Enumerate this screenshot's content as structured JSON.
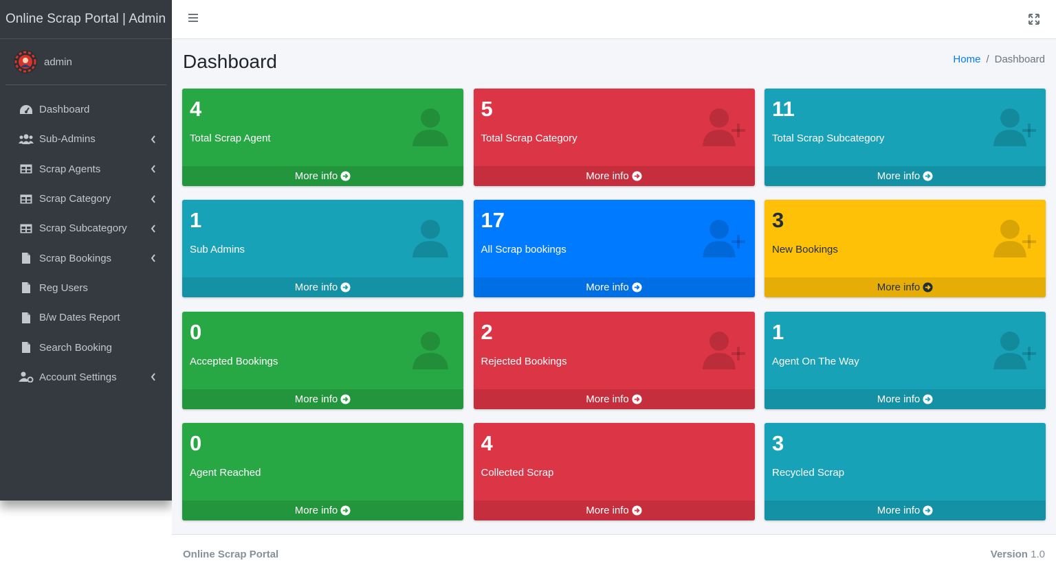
{
  "brand": {
    "title": "Online Scrap Portal | Admin"
  },
  "user": {
    "name": "admin"
  },
  "sidebar": {
    "items": [
      {
        "label": "Dashboard",
        "icon": "tachometer-icon",
        "has_caret": false
      },
      {
        "label": "Sub-Admins",
        "icon": "users-icon",
        "has_caret": true
      },
      {
        "label": "Scrap Agents",
        "icon": "table-icon",
        "has_caret": true
      },
      {
        "label": "Scrap Category",
        "icon": "table-icon",
        "has_caret": true
      },
      {
        "label": "Scrap Subcategory",
        "icon": "table-icon",
        "has_caret": true
      },
      {
        "label": "Scrap Bookings",
        "icon": "file-icon",
        "has_caret": true
      },
      {
        "label": "Reg Users",
        "icon": "file-icon",
        "has_caret": false
      },
      {
        "label": "B/w Dates Report",
        "icon": "file-icon",
        "has_caret": false
      },
      {
        "label": "Search Booking",
        "icon": "file-icon",
        "has_caret": false
      },
      {
        "label": "Account Settings",
        "icon": "user-cog-icon",
        "has_caret": true
      }
    ]
  },
  "header": {
    "page_title": "Dashboard",
    "breadcrumb": {
      "home": "Home",
      "current": "Dashboard"
    }
  },
  "boxes": [
    {
      "count": "4",
      "label": "Total Scrap Agent",
      "color": "success",
      "icon": "user-icon",
      "more": "More info"
    },
    {
      "count": "5",
      "label": "Total Scrap Category",
      "color": "danger",
      "icon": "user-plus-icon",
      "more": "More info"
    },
    {
      "count": "11",
      "label": "Total Scrap Subcategory",
      "color": "info",
      "icon": "user-plus-icon",
      "more": "More info"
    },
    {
      "count": "1",
      "label": "Sub Admins",
      "color": "info",
      "icon": "user-icon",
      "more": "More info"
    },
    {
      "count": "17",
      "label": "All Scrap bookings",
      "color": "primary",
      "icon": "user-plus-icon",
      "more": "More info"
    },
    {
      "count": "3",
      "label": "New Bookings",
      "color": "warning",
      "icon": "user-plus-icon",
      "more": "More info"
    },
    {
      "count": "0",
      "label": "Accepted Bookings",
      "color": "success",
      "icon": "user-icon",
      "more": "More info"
    },
    {
      "count": "2",
      "label": "Rejected Bookings",
      "color": "danger",
      "icon": "user-plus-icon",
      "more": "More info"
    },
    {
      "count": "1",
      "label": "Agent On The Way",
      "color": "info",
      "icon": "user-plus-icon",
      "more": "More info"
    },
    {
      "count": "0",
      "label": "Agent Reached",
      "color": "success",
      "icon": "none",
      "more": "More info"
    },
    {
      "count": "4",
      "label": "Collected Scrap",
      "color": "danger",
      "icon": "none",
      "more": "More info"
    },
    {
      "count": "3",
      "label": "Recycled Scrap",
      "color": "info",
      "icon": "none",
      "more": "More info"
    }
  ],
  "footer": {
    "left": "Online Scrap Portal",
    "version_label": "Version",
    "version": "1.0"
  },
  "colors": {
    "success": "#28a745",
    "danger": "#dc3545",
    "info": "#17a2b8",
    "primary": "#007bff",
    "warning": "#ffc107",
    "sidebar_bg": "#343a40",
    "content_bg": "#f4f6f9"
  }
}
